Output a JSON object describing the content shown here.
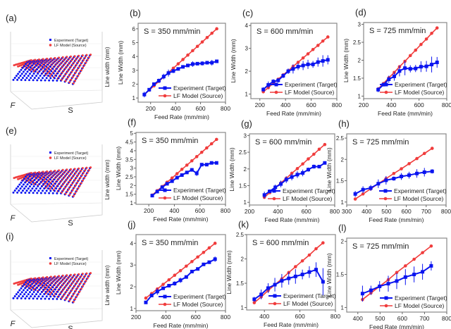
{
  "colors": {
    "experiment": "#0a14f0",
    "lf_model": "#f03c3c",
    "frame": "#555555"
  },
  "panels3d": [
    {
      "label": "(a)",
      "legend": [
        "Experiment (Target)",
        "LF Model (Source)"
      ],
      "xlabel": "F",
      "ylabel": "S",
      "zlabel": "Line width (mm)"
    },
    {
      "label": "(e)",
      "legend": [
        "Experiment (Target)",
        "LF Model (Source)"
      ],
      "xlabel": "F",
      "ylabel": "S",
      "zlabel": "Line width (mm)"
    },
    {
      "label": "(i)",
      "legend": [
        "Experiment (Target)",
        "LF Model (Source)"
      ],
      "xlabel": "F",
      "ylabel": "S",
      "zlabel": "Line width (mm)"
    }
  ],
  "chart_data": [
    {
      "label": "(b)",
      "type": "line",
      "title": "S = 350 mm/min",
      "xlabel": "Feed Rate (mm/min)",
      "ylabel": "Line Width (mm)",
      "xlim": [
        100,
        800
      ],
      "ylim": [
        0.7,
        6.4
      ],
      "xticks": [
        200,
        400,
        600,
        800
      ],
      "yticks": [
        1,
        2,
        3,
        4,
        5,
        6
      ],
      "legend": "bottom-right",
      "x": [
        150,
        189,
        227,
        266,
        305,
        343,
        382,
        421,
        459,
        498,
        537,
        575,
        614,
        653,
        691,
        730
      ],
      "series": [
        {
          "name": "Experiment (Target)",
          "values": [
            1.25,
            1.6,
            2.0,
            2.25,
            2.55,
            2.8,
            2.95,
            3.1,
            3.25,
            3.35,
            3.45,
            3.48,
            3.5,
            3.55,
            3.55,
            3.65
          ],
          "err": [
            0.2,
            0.1,
            0.12,
            0.15,
            0.2,
            0.25,
            0.15,
            0.1,
            0.1,
            0.1,
            0.2,
            0.12,
            0.15,
            0.1,
            0.2,
            0.1
          ]
        },
        {
          "name": "LF Model (Source)",
          "values": [
            1.25,
            1.57,
            1.88,
            2.2,
            2.52,
            2.83,
            3.15,
            3.47,
            3.78,
            4.1,
            4.42,
            4.73,
            5.05,
            5.37,
            5.68,
            6.0
          ]
        }
      ]
    },
    {
      "label": "(c)",
      "type": "line",
      "title": "S = 600 mm/min",
      "xlabel": "Feed Rate (mm/min)",
      "ylabel": "Line Width (mm)",
      "xlim": [
        130,
        800
      ],
      "ylim": [
        0.8,
        4.1
      ],
      "xticks": [
        200,
        400,
        600,
        800
      ],
      "yticks": [
        1,
        2,
        3,
        4
      ],
      "legend": "bottom-right",
      "x": [
        227,
        266,
        305,
        343,
        382,
        421,
        459,
        498,
        537,
        575,
        614,
        653,
        691,
        730
      ],
      "series": [
        {
          "name": "Experiment (Target)",
          "values": [
            1.2,
            1.4,
            1.55,
            1.6,
            1.8,
            2.0,
            2.1,
            2.2,
            2.25,
            2.3,
            2.3,
            2.4,
            2.45,
            2.5
          ],
          "err": [
            0.1,
            0.15,
            0.1,
            0.1,
            0.1,
            0.12,
            0.2,
            0.15,
            0.2,
            0.2,
            0.15,
            0.2,
            0.25,
            0.2
          ]
        },
        {
          "name": "LF Model (Source)",
          "values": [
            1.1,
            1.28,
            1.47,
            1.65,
            1.84,
            2.02,
            2.21,
            2.39,
            2.58,
            2.76,
            2.95,
            3.13,
            3.32,
            3.5
          ]
        }
      ]
    },
    {
      "label": "(d)",
      "type": "line",
      "title": "S = 725 mm/min",
      "xlabel": "Feed Rate (mm/min)",
      "ylabel": "Line Width (mm)",
      "xlim": [
        200,
        800
      ],
      "ylim": [
        0.93,
        3.05
      ],
      "xticks": [
        200,
        400,
        600,
        800
      ],
      "yticks": [
        1,
        1.5,
        2,
        2.5,
        3
      ],
      "legend": "bottom-right",
      "x": [
        305,
        343,
        382,
        421,
        459,
        498,
        537,
        575,
        614,
        653,
        691,
        730
      ],
      "series": [
        {
          "name": "Experiment (Target)",
          "values": [
            1.18,
            1.32,
            1.47,
            1.55,
            1.7,
            1.78,
            1.76,
            1.77,
            1.82,
            1.83,
            1.88,
            1.94
          ],
          "err": [
            0.07,
            0.05,
            0.1,
            0.12,
            0.15,
            0.2,
            0.1,
            0.1,
            0.15,
            0.15,
            0.22,
            0.15
          ]
        },
        {
          "name": "LF Model (Source)",
          "values": [
            1.2,
            1.35,
            1.51,
            1.66,
            1.82,
            1.97,
            2.13,
            2.28,
            2.44,
            2.59,
            2.75,
            2.9
          ]
        }
      ]
    },
    {
      "label": "(f)",
      "type": "line",
      "title": "S = 350 mm/min",
      "xlabel": "Feed Rate (mm/min)",
      "ylabel": "Line Width (mm)",
      "xlim": [
        100,
        800
      ],
      "ylim": [
        0.92,
        5.05
      ],
      "xticks": [
        200,
        400,
        600,
        800
      ],
      "yticks": [
        1,
        1.5,
        2,
        2.5,
        3,
        3.5,
        4,
        4.5,
        5
      ],
      "legend": "bottom-right",
      "x": [
        227,
        266,
        305,
        343,
        382,
        421,
        459,
        498,
        537,
        575,
        614,
        653,
        691,
        730
      ],
      "series": [
        {
          "name": "Experiment (Target)",
          "values": [
            1.42,
            1.65,
            1.9,
            2.1,
            2.25,
            2.45,
            2.6,
            2.75,
            2.9,
            2.7,
            3.2,
            3.2,
            3.3,
            3.3
          ],
          "err": [
            0.05,
            0.05,
            0.05,
            0.05,
            0.05,
            0.05,
            0.05,
            0.05,
            0.1,
            0.15,
            0.05,
            0.05,
            0.05,
            0.05
          ]
        },
        {
          "name": "LF Model (Source)",
          "values": [
            1.45,
            1.7,
            1.94,
            2.19,
            2.43,
            2.68,
            2.93,
            3.17,
            3.42,
            3.66,
            3.91,
            4.16,
            4.4,
            4.65
          ]
        }
      ]
    },
    {
      "label": "(g)",
      "type": "line",
      "title": "S = 600 mm/min",
      "xlabel": "Feed Rate (mm/min)",
      "ylabel": "Line Width (mm)",
      "xlim": [
        200,
        800
      ],
      "ylim": [
        0.92,
        3.05
      ],
      "xticks": [
        200,
        400,
        600,
        800
      ],
      "yticks": [
        1,
        1.5,
        2,
        2.5,
        3
      ],
      "legend": "bottom-right",
      "x": [
        305,
        343,
        382,
        421,
        459,
        498,
        537,
        575,
        614,
        653,
        691,
        730
      ],
      "series": [
        {
          "name": "Experiment (Target)",
          "values": [
            1.22,
            1.33,
            1.45,
            1.55,
            1.68,
            1.76,
            1.83,
            1.88,
            1.98,
            2.07,
            2.07,
            2.18
          ],
          "err": [
            0.1,
            0.05,
            0.08,
            0.1,
            0.1,
            0.1,
            0.1,
            0.1,
            0.06,
            0.06,
            0.05,
            0.04
          ]
        },
        {
          "name": "LF Model (Source)",
          "values": [
            1.15,
            1.29,
            1.44,
            1.58,
            1.72,
            1.87,
            2.01,
            2.15,
            2.3,
            2.44,
            2.59,
            2.73
          ]
        }
      ]
    },
    {
      "label": "(h)",
      "type": "line",
      "title": "S = 725 mm/min",
      "xlabel": "Feed Rate (mm/min)",
      "ylabel": "Line Width (mm)",
      "xlim": [
        300,
        800
      ],
      "ylim": [
        0.93,
        2.6
      ],
      "xticks": [
        300,
        400,
        500,
        600,
        700,
        800
      ],
      "yticks": [
        1,
        1.5,
        2,
        2.5
      ],
      "legend": "bottom-right",
      "x": [
        343,
        382,
        421,
        459,
        498,
        537,
        575,
        614,
        653,
        691,
        730
      ],
      "series": [
        {
          "name": "Experiment (Target)",
          "values": [
            1.19,
            1.29,
            1.33,
            1.43,
            1.51,
            1.55,
            1.6,
            1.63,
            1.67,
            1.7,
            1.72
          ],
          "err": [
            0.07,
            0.08,
            0.07,
            0.1,
            0.1,
            0.05,
            0.08,
            0.08,
            0.1,
            0.1,
            0.05
          ]
        },
        {
          "name": "LF Model (Source)",
          "values": [
            1.07,
            1.19,
            1.31,
            1.43,
            1.55,
            1.67,
            1.78,
            1.9,
            2.02,
            2.14,
            2.26
          ]
        }
      ]
    },
    {
      "label": "(j)",
      "type": "line",
      "title": "S = 350 mm/min",
      "xlabel": "Feed Rate (mm/min)",
      "ylabel": "Line Width (mm)",
      "xlim": [
        200,
        800
      ],
      "ylim": [
        0.9,
        4.4
      ],
      "xticks": [
        200,
        400,
        600,
        800
      ],
      "yticks": [
        1,
        2,
        3,
        4
      ],
      "legend": "bottom-right",
      "x": [
        266,
        305,
        343,
        382,
        421,
        459,
        498,
        537,
        575,
        614,
        653,
        691,
        730
      ],
      "series": [
        {
          "name": "Experiment (Target)",
          "values": [
            1.28,
            1.6,
            1.78,
            1.93,
            2.05,
            2.15,
            2.3,
            2.45,
            2.7,
            2.82,
            3.03,
            3.13,
            3.27
          ],
          "err": [
            0.07,
            0.08,
            0.15,
            0.05,
            0.05,
            0.1,
            0.12,
            0.05,
            0.05,
            0.06,
            0.06,
            0.08,
            0.12
          ]
        },
        {
          "name": "LF Model (Source)",
          "values": [
            1.48,
            1.69,
            1.9,
            2.11,
            2.32,
            2.53,
            2.74,
            2.95,
            3.16,
            3.37,
            3.58,
            3.79,
            4.0
          ]
        }
      ]
    },
    {
      "label": "(k)",
      "type": "line",
      "title": "S = 600 mm/min",
      "xlabel": "Feed Rate (mm/min)",
      "ylabel": "Line Width (mm)",
      "xlim": [
        300,
        800
      ],
      "ylim": [
        0.95,
        2.5
      ],
      "xticks": [
        400,
        600,
        800
      ],
      "yticks": [
        1,
        1.5,
        2,
        2.5
      ],
      "legend": "bottom-right",
      "x": [
        343,
        382,
        421,
        459,
        498,
        537,
        575,
        614,
        653,
        691,
        730
      ],
      "series": [
        {
          "name": "Experiment (Target)",
          "values": [
            1.17,
            1.27,
            1.4,
            1.47,
            1.55,
            1.6,
            1.64,
            1.68,
            1.73,
            1.78,
            1.53
          ],
          "err": [
            0.05,
            0.1,
            0.1,
            0.14,
            0.14,
            0.13,
            0.15,
            0.1,
            0.12,
            0.15,
            0.28
          ]
        },
        {
          "name": "LF Model (Source)",
          "values": [
            1.1,
            1.22,
            1.35,
            1.47,
            1.59,
            1.72,
            1.84,
            1.96,
            2.08,
            2.21,
            2.33
          ]
        }
      ]
    },
    {
      "label": "(l)",
      "type": "line",
      "title": "S = 725 mm/min",
      "xlabel": "Feed Rate (mm/min)",
      "ylabel": "Line Width (mm)",
      "xlim": [
        350,
        800
      ],
      "ylim": [
        0.93,
        2.05
      ],
      "xticks": [
        400,
        500,
        600,
        700,
        800
      ],
      "yticks": [
        1,
        1.5,
        2
      ],
      "legend": "bottom-right",
      "x": [
        421,
        459,
        498,
        537,
        575,
        614,
        653,
        691,
        730
      ],
      "series": [
        {
          "name": "Experiment (Target)",
          "values": [
            1.21,
            1.26,
            1.32,
            1.36,
            1.4,
            1.46,
            1.5,
            1.54,
            1.63
          ],
          "err": [
            0.12,
            0.07,
            0.08,
            0.12,
            0.12,
            0.12,
            0.12,
            0.12,
            0.07
          ]
        },
        {
          "name": "LF Model (Source)",
          "values": [
            1.12,
            1.22,
            1.32,
            1.42,
            1.53,
            1.63,
            1.73,
            1.83,
            1.93
          ]
        }
      ]
    }
  ]
}
